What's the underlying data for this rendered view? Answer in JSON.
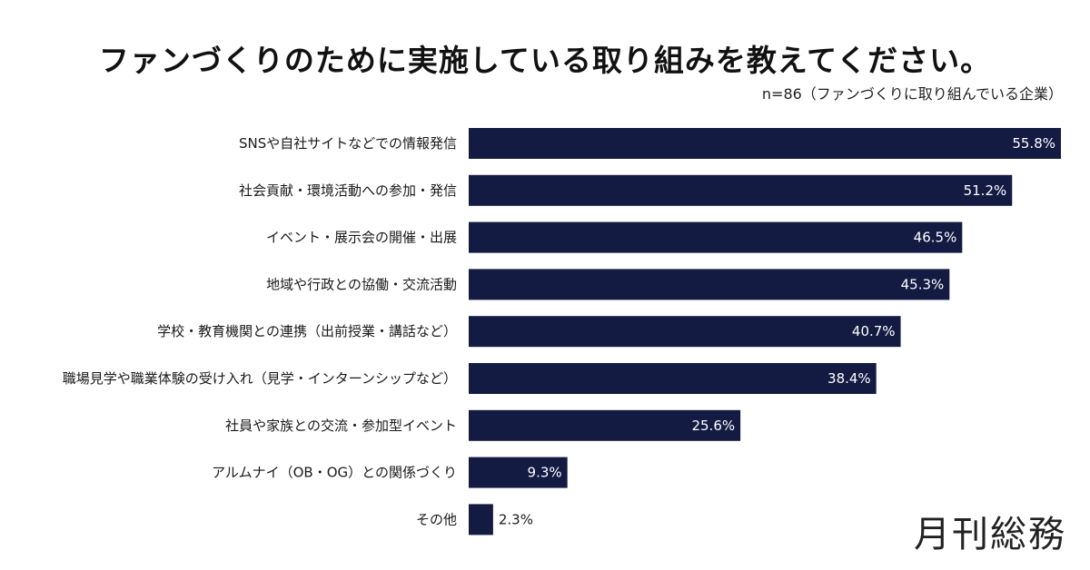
{
  "chart_data": {
    "type": "bar",
    "orientation": "horizontal",
    "title": "ファンづくりのために実施している取り組みを教えてください。",
    "subtitle": "n=86（ファンづくりに取り組んでいる企業）",
    "categories": [
      "SNSや自社サイトなどでの情報発信",
      "社会貢献・環境活動への参加・発信",
      "イベント・展示会の開催・出展",
      "地域や行政との協働・交流活動",
      "学校・教育機関との連携（出前授業・講話など）",
      "職場見学や職業体験の受け入れ（見学・インターンシップなど）",
      "社員や家族との交流・参加型イベント",
      "アルムナイ（OB・OG）との関係づくり",
      "その他"
    ],
    "values": [
      55.8,
      51.2,
      46.5,
      45.3,
      40.7,
      38.4,
      25.6,
      9.3,
      2.3
    ],
    "value_labels": [
      "55.8%",
      "51.2%",
      "46.5%",
      "45.3%",
      "40.7%",
      "38.4%",
      "25.6%",
      "9.3%",
      "2.3%"
    ],
    "unit": "%",
    "grid": false,
    "bar_color": "#141b43"
  },
  "logo": "月刊総務"
}
